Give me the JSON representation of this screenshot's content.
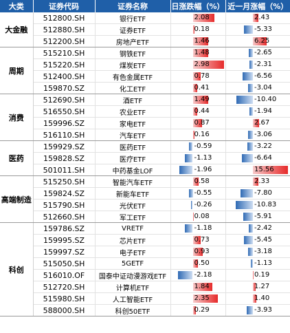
{
  "headers": [
    "大类",
    "证券代码",
    "证券名称",
    "日涨跌幅（%）",
    "近一月涨幅（%）"
  ],
  "groups": [
    {
      "category": "大金融",
      "rows": [
        {
          "code": "512800.SH",
          "name": "银行ETF",
          "day": 2.08,
          "month": 2.43
        },
        {
          "code": "512880.SH",
          "name": "证券ETF",
          "day": 0.18,
          "month": -5.33
        },
        {
          "code": "512200.SH",
          "name": "房地产ETF",
          "day": 1.46,
          "month": 6.25
        }
      ]
    },
    {
      "category": "周期",
      "rows": [
        {
          "code": "515210.SH",
          "name": "钢铁ETF",
          "day": 1.48,
          "month": -2.65
        },
        {
          "code": "515220.SH",
          "name": "煤炭ETF",
          "day": 2.98,
          "month": -2.31
        },
        {
          "code": "512400.SH",
          "name": "有色金属ETF",
          "day": 0.78,
          "month": -6.56
        },
        {
          "code": "159870.SZ",
          "name": "化工ETF",
          "day": 0.41,
          "month": -3.04
        }
      ]
    },
    {
      "category": "消费",
      "rows": [
        {
          "code": "512690.SH",
          "name": "酒ETF",
          "day": 1.49,
          "month": -10.4
        },
        {
          "code": "516550.SH",
          "name": "农业ETF",
          "day": 0.44,
          "month": -1.94
        },
        {
          "code": "159996.SZ",
          "name": "家电ETF",
          "day": 0.87,
          "month": 2.67
        },
        {
          "code": "516110.SH",
          "name": "汽车ETF",
          "day": 0.16,
          "month": -3.06
        }
      ]
    },
    {
      "category": "医药",
      "rows": [
        {
          "code": "159929.SZ",
          "name": "医药ETF",
          "day": -0.59,
          "month": -3.22
        },
        {
          "code": "159828.SZ",
          "name": "医疗ETF",
          "day": -1.13,
          "month": -6.64
        },
        {
          "code": "501011.SH",
          "name": "中药基金LOF",
          "day": -1.96,
          "month": 15.56
        }
      ]
    },
    {
      "category": "高端制造",
      "rows": [
        {
          "code": "515250.SH",
          "name": "智能汽车ETF",
          "day": 0.58,
          "month": 2.33
        },
        {
          "code": "159824.SZ",
          "name": "新能车ETF",
          "day": -0.55,
          "month": -7.8
        },
        {
          "code": "515790.SH",
          "name": "光伏ETF",
          "day": -0.26,
          "month": -10.83
        },
        {
          "code": "512660.SH",
          "name": "军工ETF",
          "day": 0.08,
          "month": -5.91
        }
      ]
    },
    {
      "category": "科创",
      "rows": [
        {
          "code": "159786.SZ",
          "name": "VRETF",
          "day": -1.18,
          "month": -2.42
        },
        {
          "code": "159995.SZ",
          "name": "芯片ETF",
          "day": 0.73,
          "month": -5.45
        },
        {
          "code": "159997.SZ",
          "name": "电子ETF",
          "day": 0.93,
          "month": -3.18
        },
        {
          "code": "515050.SH",
          "name": "5GETF",
          "day": 0.5,
          "month": -1.13
        },
        {
          "code": "516010.OF",
          "name": "国泰中证动漫游戏ETF",
          "day": -2.18,
          "month": 0.19
        },
        {
          "code": "512720.SH",
          "name": "计算机ETF",
          "day": 1.84,
          "month": 1.27
        },
        {
          "code": "515980.SH",
          "name": "人工智能ETF",
          "day": 2.35,
          "month": 1.4
        },
        {
          "code": "588000.SH",
          "name": "科创50ETF",
          "day": 0.29,
          "month": -3.93
        }
      ]
    }
  ],
  "colors": {
    "positive": "#e62a2a",
    "negative": "#2f6ab4",
    "header_bg": "#1f5fa8"
  }
}
